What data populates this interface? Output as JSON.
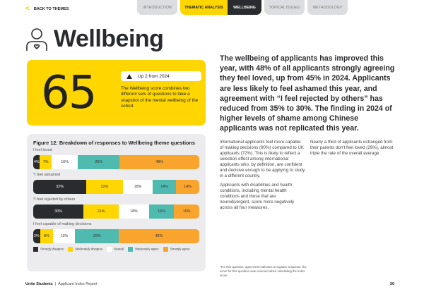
{
  "nav": {
    "back": "BACK TO THEMES",
    "tabs": [
      "INTRODUCTION",
      "THEMATIC ANALYSIS",
      "WELLBEING",
      "TOPICAL ISSUES",
      "METHODOLOGY"
    ]
  },
  "title": "Wellbeing",
  "score": {
    "value": "65",
    "change": "Up 2 from 2024",
    "description": "The Wellbeing score combines two different sets of questions to take a snapshot of the mental wellbeing of the cohort."
  },
  "lead": "The wellbeing of applicants has improved this year, with 48% of all applicants strongly agreeing they feel loved, up from 45% in 2024. Applicants are less likely to feel ashamed this year, and agreement with “I feel rejected by others” has reduced from 35% to 30%. The finding in 2024 of higher levels of shame among Chinese applicants was not replicated this year.",
  "col1": [
    "International applicants feel more capable of making decisions (90%) compared to UK applicants (72%). This is likely to reflect a selection effect among international applicants who, by definition, are confident and decisive enough to be applying to study in a different country.",
    "Applicants with disabilities and health conditions, including mental health conditions and those that are neurodivergent, score more negatively across all four measures."
  ],
  "col2": [
    "Nearly a third of applicants estranged from their parents don't feel loved (29%), almost triple the rate of the overall average."
  ],
  "footnote": "*For this question, agreement indicates a negative response; the score for this question was reversed when calculating the index score",
  "footer": {
    "brand": "Unite Students",
    "report": "Applicant Index Report",
    "page": "20"
  },
  "chart_data": {
    "type": "bar",
    "stacked": true,
    "orientation": "horizontal",
    "title": "Figure 12: Breakdown of responses to Wellbeing theme questions",
    "legend": [
      "Strongly disagree",
      "Moderately disagree",
      "Neutral",
      "Moderately agree",
      "Strongly agree"
    ],
    "colors": [
      "#2a2b2e",
      "#ffd600",
      "#ffffff",
      "#4fbab0",
      "#f9a52d"
    ],
    "categories": [
      "I feel loved",
      "*I feel ashamed",
      "*I feel rejected by others",
      "I feel capable of making decisions"
    ],
    "values": [
      [
        4,
        7,
        16,
        25,
        48
      ],
      [
        32,
        22,
        18,
        14,
        14
      ],
      [
        30,
        21,
        18,
        15,
        15
      ],
      [
        3,
        8,
        13,
        26,
        48
      ]
    ]
  }
}
